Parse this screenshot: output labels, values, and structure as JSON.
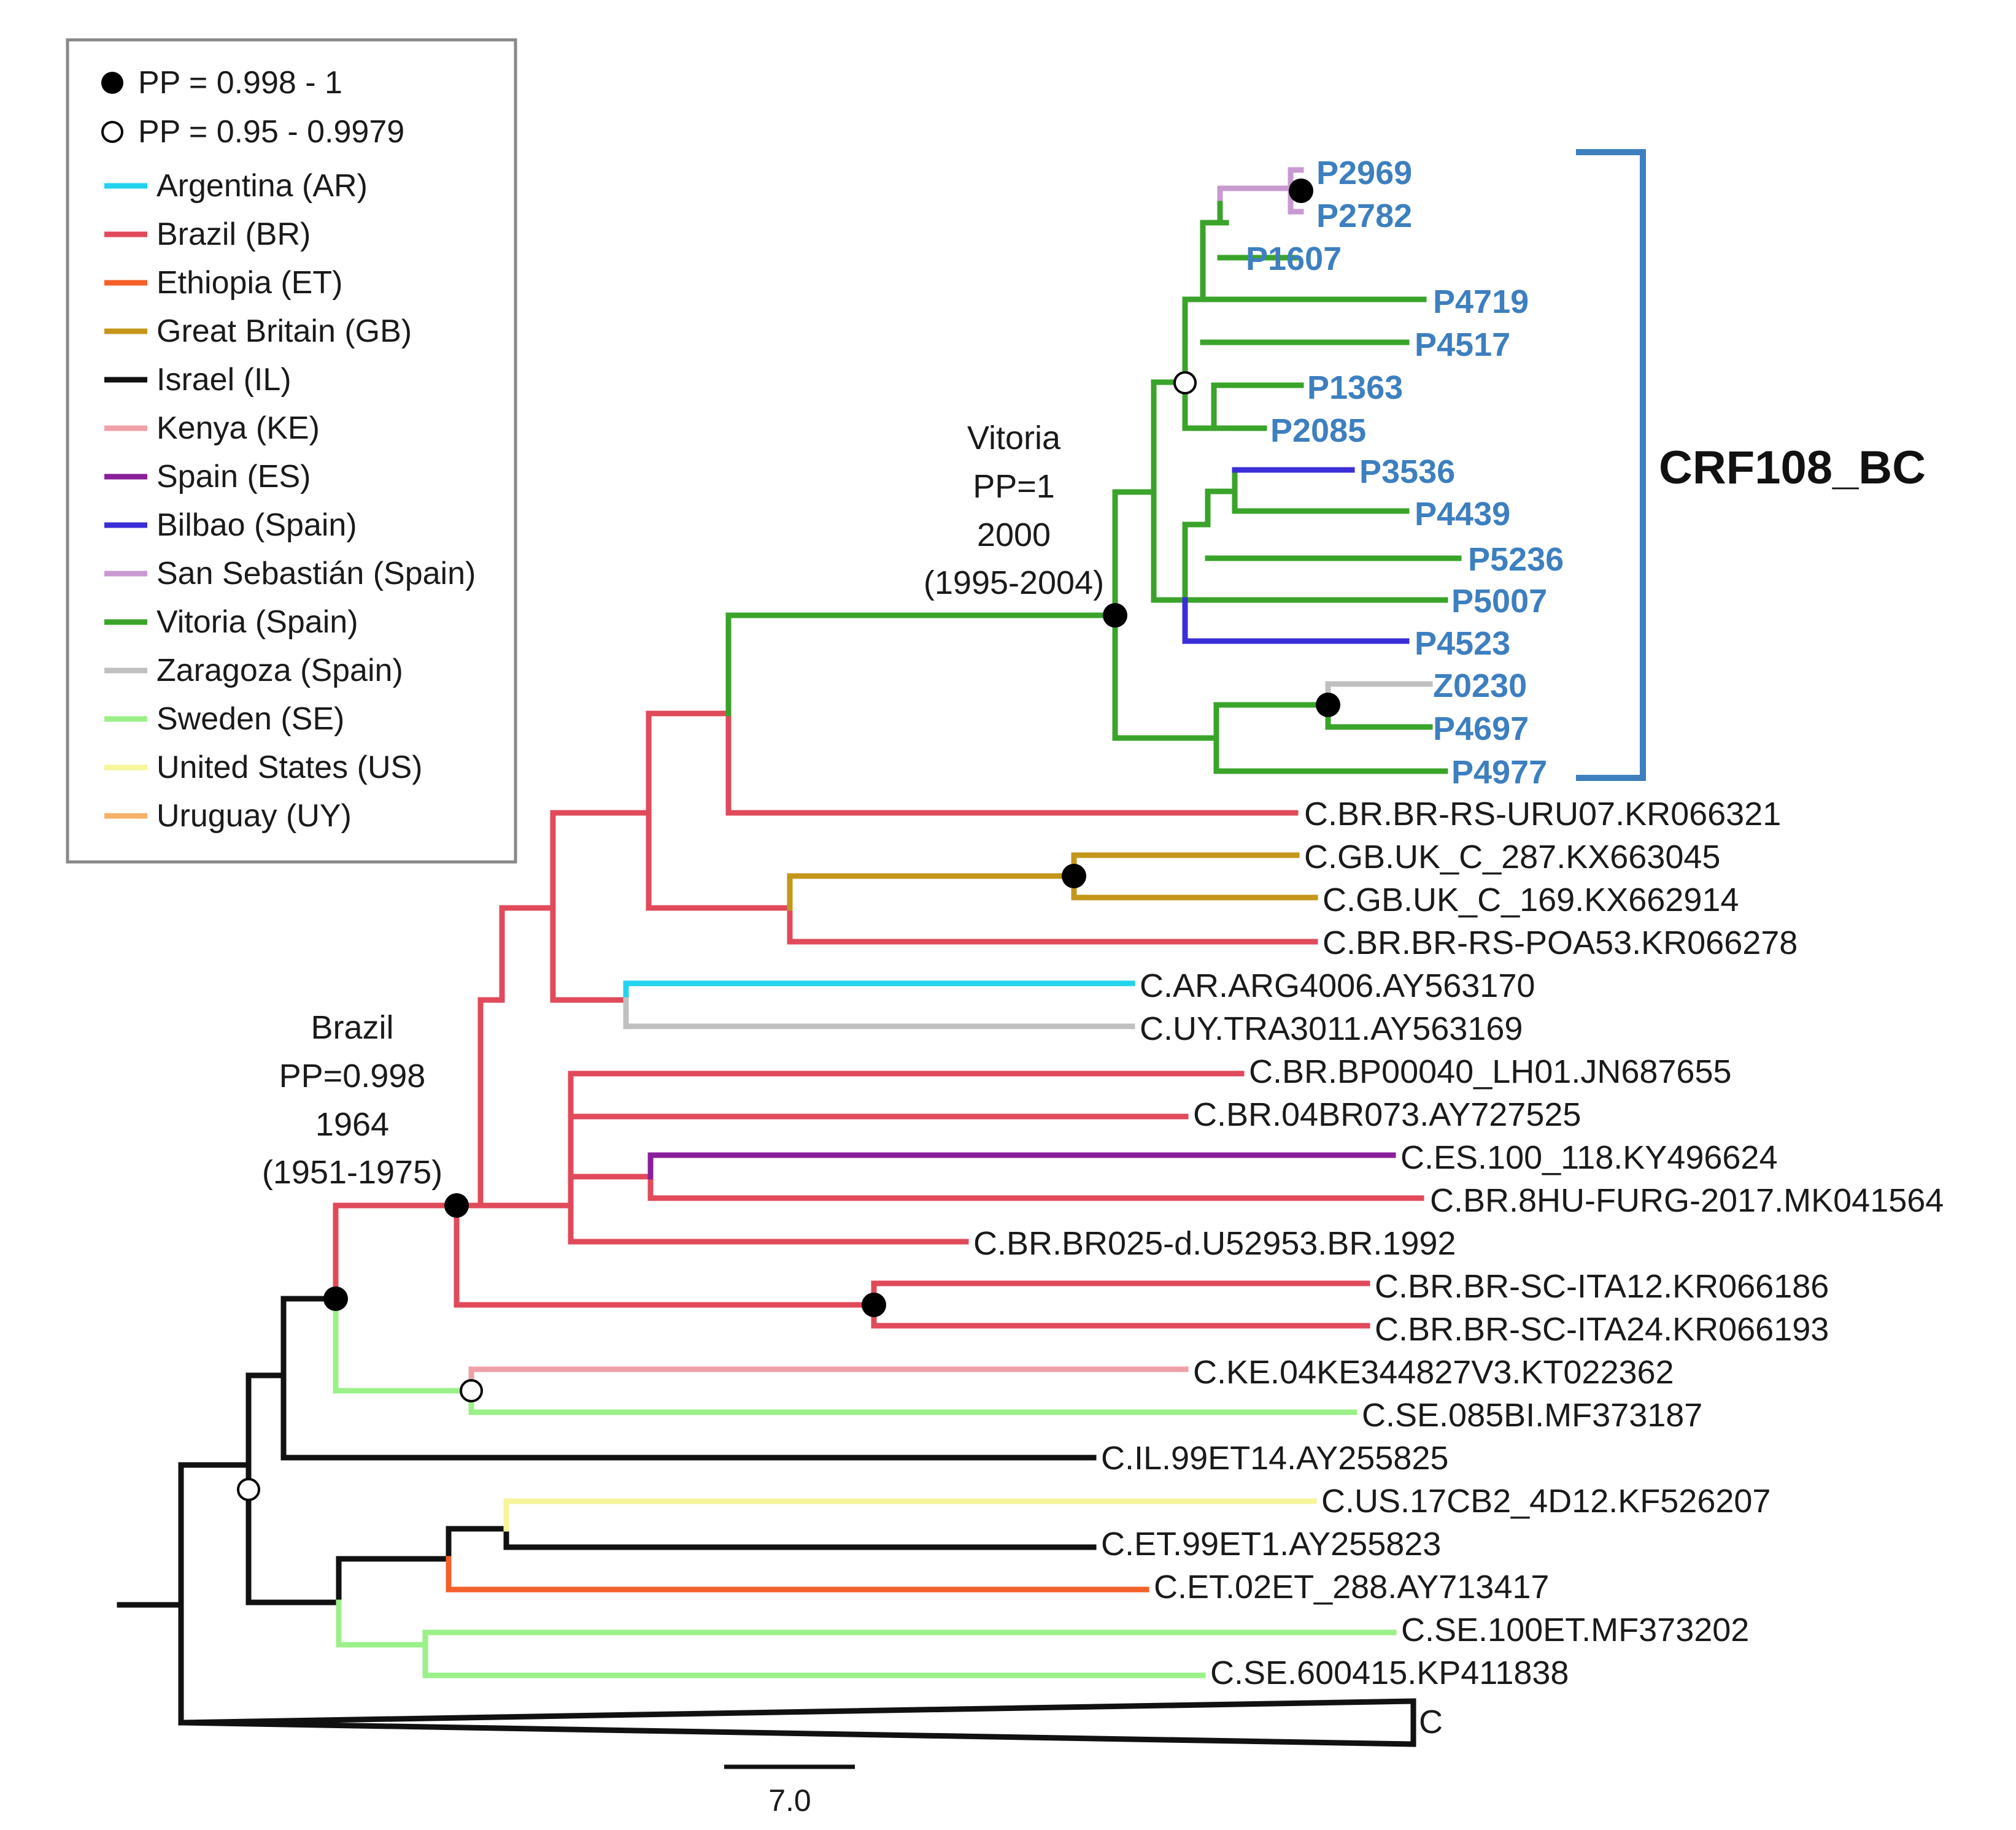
{
  "legend": {
    "support": [
      {
        "label": "PP = 0.998 - 1",
        "symbol": "filled-circle"
      },
      {
        "label": "PP = 0.95 - 0.9979",
        "symbol": "open-circle"
      }
    ],
    "locations": [
      {
        "label": "Argentina (AR)",
        "color": "#22d3ee"
      },
      {
        "label": "Brazil (BR)",
        "color": "#e04a5a"
      },
      {
        "label": "Ethiopia (ET)",
        "color": "#f5602a"
      },
      {
        "label": "Great Britain (GB)",
        "color": "#c4961a"
      },
      {
        "label": "Israel (IL)",
        "color": "#111111"
      },
      {
        "label": "Kenya (KE)",
        "color": "#f0a0a8"
      },
      {
        "label": "Spain (ES)",
        "color": "#8a1f9a"
      },
      {
        "label": "Bilbao (Spain)",
        "color": "#3a2fd6"
      },
      {
        "label": "San Sebastián (Spain)",
        "color": "#c99ad2"
      },
      {
        "label": "Vitoria (Spain)",
        "color": "#3aa32a"
      },
      {
        "label": "Zaragoza (Spain)",
        "color": "#c0c0c0"
      },
      {
        "label": "Sweden (SE)",
        "color": "#9cf08a"
      },
      {
        "label": "United States (US)",
        "color": "#f6f59a"
      },
      {
        "label": "Uruguay (UY)",
        "color": "#f5b06a"
      }
    ]
  },
  "crf_color": "#3d7fbf",
  "taxa_crf": [
    "P2969",
    "P2782",
    "P1607",
    "P4719",
    "P4517",
    "P1363",
    "P2085",
    "P3536",
    "P4439",
    "P5236",
    "P5007",
    "P4523",
    "Z0230",
    "P4697",
    "P4977"
  ],
  "taxa_ref": [
    "C.BR.BR-RS-URU07.KR066321",
    "C.GB.UK_C_287.KX663045",
    "C.GB.UK_C_169.KX662914",
    "C.BR.BR-RS-POA53.KR066278",
    "C.AR.ARG4006.AY563170",
    "C.UY.TRA3011.AY563169",
    "C.BR.BP00040_LH01.JN687655",
    "C.BR.04BR073.AY727525",
    "C.ES.100_118.KY496624",
    "C.BR.8HU-FURG-2017.MK041564",
    "C.BR.BR025-d.U52953.BR.1992",
    "C.BR.BR-SC-ITA12.KR066186",
    "C.BR.BR-SC-ITA24.KR066193",
    "C.KE.04KE344827V3.KT022362",
    "C.SE.085BI.MF373187",
    "C.IL.99ET14.AY255825",
    "C.US.17CB2_4D12.KF526207",
    "C.ET.99ET1.AY255823",
    "C.ET.02ET_288.AY713417",
    "C.SE.100ET.MF373202",
    "C.SE.600415.KP411838"
  ],
  "collapsed_clade": "C",
  "clade_label": "CRF108_BC",
  "annotations": {
    "vitoria": [
      "Vitoria",
      "PP=1",
      "2000",
      "(1995-2004)"
    ],
    "brazil": [
      "Brazil",
      "PP=0.998",
      "1964",
      "(1951-1975)"
    ]
  },
  "scale_bar": {
    "label": "7.0",
    "length_units": 7.0
  }
}
